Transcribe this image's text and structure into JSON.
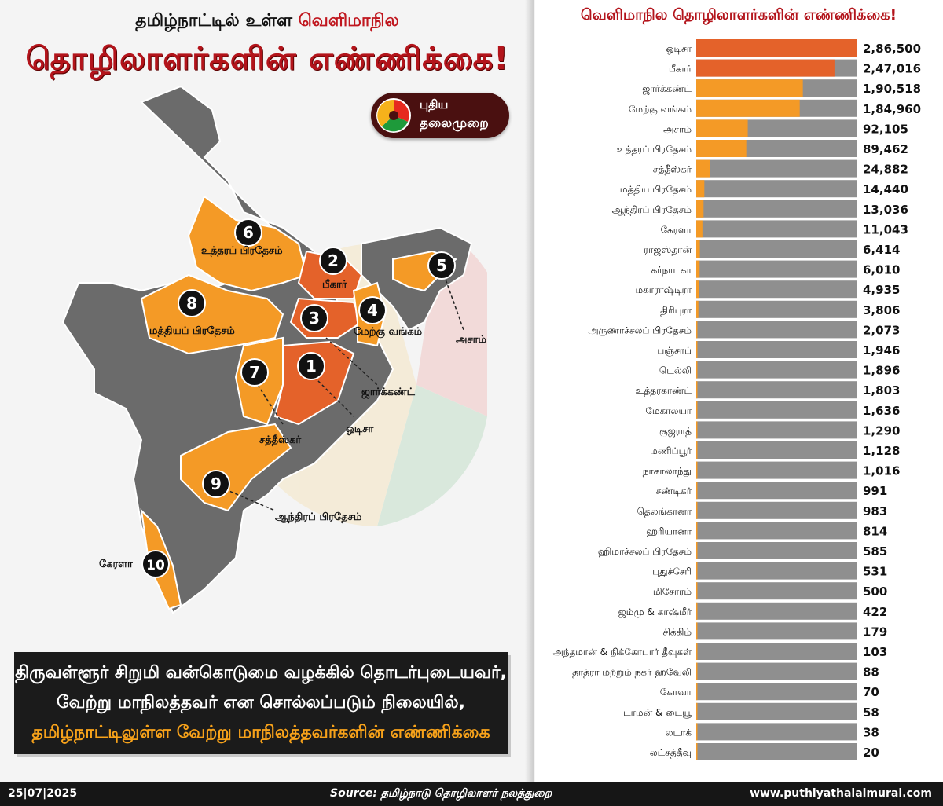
{
  "header": {
    "title_line1_part1": "தமிழ்நாட்டில் உள்ள",
    "title_line1_part2": "வெளிமாநில",
    "title_line2": "தொழிலாளர்களின் எண்ணிக்கை!"
  },
  "logo": {
    "line1": "புதிய",
    "line2": "தலைமுறை"
  },
  "colors": {
    "map_gray": "#6b6b6b",
    "rank_1_2": "#e4622a",
    "rank_others": "#f49a26",
    "bar_track": "#8f8f8f",
    "title_red": "#b3141b"
  },
  "map": {
    "labels": [
      {
        "rank": "1",
        "name": "ஒடிசா"
      },
      {
        "rank": "2",
        "name": "பீகார்"
      },
      {
        "rank": "3",
        "name": "ஜார்க்கண்ட்"
      },
      {
        "rank": "4",
        "name": "மேற்கு வங்கம்"
      },
      {
        "rank": "5",
        "name": "அசாம்"
      },
      {
        "rank": "6",
        "name": "உத்தரப் பிரதேசம்"
      },
      {
        "rank": "7",
        "name": "சத்தீஸ்கர்"
      },
      {
        "rank": "8",
        "name": "மத்தியப் பிரதேசம்"
      },
      {
        "rank": "9",
        "name": "ஆந்திரப் பிரதேசம்"
      },
      {
        "rank": "10",
        "name": "கேரளா"
      }
    ]
  },
  "caption": {
    "line1": "திருவள்ளூர் சிறுமி வன்கொடுமை வழக்கில் தொடர்புடையவர்,",
    "line2": "வேற்று மாநிலத்தவர் என சொல்லப்படும் நிலையில்,",
    "line3": "தமிழ்நாட்டிலுள்ள வேற்று மாநிலத்தவர்களின் எண்ணிக்கை"
  },
  "chart_data": {
    "type": "bar",
    "orientation": "horizontal",
    "title": "வெளிமாநில தொழிலாளர்களின் எண்ணிக்கை!",
    "xlim": [
      0,
      286500
    ],
    "grid": false,
    "categories": [
      "ஒடிசா",
      "பீகார்",
      "ஜார்க்கண்ட்",
      "மேற்கு வங்கம்",
      "அசாம்",
      "உத்தரப் பிரதேசம்",
      "சத்தீஸ்கர்",
      "மத்திய பிரதேசம்",
      "ஆந்திரப் பிரதேசம்",
      "கேரளா",
      "ராஜஸ்தான்",
      "கர்நாடகா",
      "மகாராஷ்டிரா",
      "திரிபுரா",
      "அருணாச்சலப் பிரதேசம்",
      "பஞ்சாப்",
      "டெல்லி",
      "உத்தரகாண்ட்",
      "மேகாலயா",
      "குஜராத்",
      "மணிப்பூர்",
      "நாகாலாந்து",
      "சண்டிகர்",
      "தெலங்கானா",
      "ஹரியானா",
      "ஹிமாச்சலப் பிரதேசம்",
      "புதுச்சேரி",
      "மிசோரம்",
      "ஜம்மு & காஷ்மீர்",
      "சிக்கிம்",
      "அந்தமான் & நிக்கோபார் தீவுகள்",
      "தாத்ரா மற்றும் நகர் ஹவேலி",
      "கோவா",
      "டாமன் & டையூ",
      "லடாக்",
      "லட்சத்தீவு"
    ],
    "values": [
      286500,
      247016,
      190518,
      184960,
      92105,
      89462,
      24882,
      14440,
      13036,
      11043,
      6414,
      6010,
      4935,
      3806,
      2073,
      1946,
      1896,
      1803,
      1636,
      1290,
      1128,
      1016,
      991,
      983,
      814,
      585,
      531,
      500,
      422,
      179,
      103,
      88,
      70,
      58,
      38,
      20
    ],
    "value_labels": [
      "2,86,500",
      "2,47,016",
      "1,90,518",
      "1,84,960",
      "92,105",
      "89,462",
      "24,882",
      "14,440",
      "13,036",
      "11,043",
      "6,414",
      "6,010",
      "4,935",
      "3,806",
      "2,073",
      "1,946",
      "1,896",
      "1,803",
      "1,636",
      "1,290",
      "1,128",
      "1,016",
      "991",
      "983",
      "814",
      "585",
      "531",
      "500",
      "422",
      "179",
      "103",
      "88",
      "70",
      "58",
      "38",
      "20"
    ]
  },
  "footer": {
    "date": "25|07|2025",
    "source": "Source: தமிழ்நாடு தொழிலாளர் நலத்துறை",
    "website": "www.puthiyathalaimurai.com"
  }
}
